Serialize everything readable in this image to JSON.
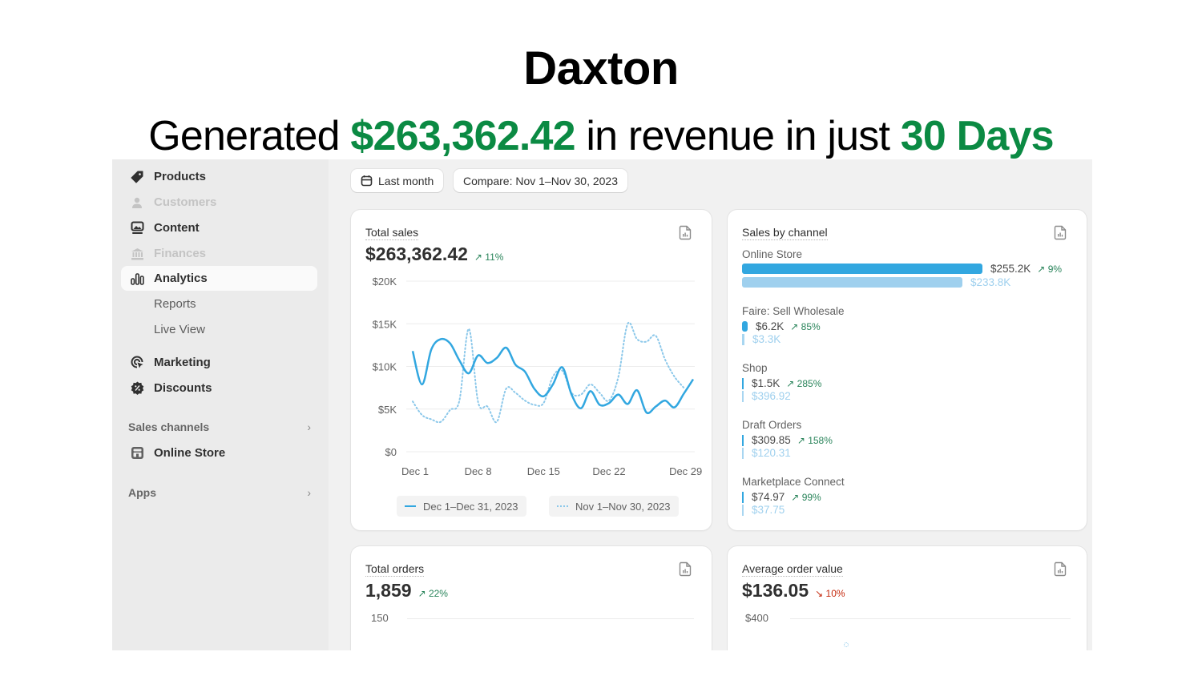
{
  "headline": {
    "brand": "Daxton",
    "prefix": "Generated ",
    "amount": "$263,362.42",
    "middle": " in revenue in just ",
    "period": "30 Days"
  },
  "sidebar": {
    "items": [
      {
        "label": "Products",
        "icon": "tag-icon",
        "state": "normal"
      },
      {
        "label": "Customers",
        "icon": "person-icon",
        "state": "disabled"
      },
      {
        "label": "Content",
        "icon": "image-monitor-icon",
        "state": "normal"
      },
      {
        "label": "Finances",
        "icon": "bank-icon",
        "state": "disabled"
      },
      {
        "label": "Analytics",
        "icon": "bar-chart-icon",
        "state": "active"
      },
      {
        "label": "Reports",
        "state": "sub"
      },
      {
        "label": "Live View",
        "state": "sub"
      },
      {
        "label": "Marketing",
        "icon": "target-icon",
        "state": "normal"
      },
      {
        "label": "Discounts",
        "icon": "discount-badge-icon",
        "state": "normal"
      }
    ],
    "sales_channels_label": "Sales channels",
    "online_store_label": "Online Store",
    "apps_label": "Apps"
  },
  "toolbar": {
    "date_button": "Last month",
    "compare_button": "Compare: Nov 1–Nov 30, 2023"
  },
  "total_sales": {
    "title": "Total sales",
    "value": "$263,362.42",
    "delta": "11%",
    "legend_current": "Dec 1–Dec 31, 2023",
    "legend_previous": "Nov 1–Nov 30, 2023"
  },
  "sales_by_channel": {
    "title": "Sales by channel",
    "channels": [
      {
        "name": "Online Store",
        "current": "$255.2K",
        "delta": "9%",
        "previous": "$233.8K",
        "current_value": 255200,
        "previous_value": 233800
      },
      {
        "name": "Faire: Sell Wholesale",
        "current": "$6.2K",
        "delta": "85%",
        "previous": "$3.3K",
        "current_value": 6200,
        "previous_value": 3300
      },
      {
        "name": "Shop",
        "current": "$1.5K",
        "delta": "285%",
        "previous": "$396.92",
        "current_value": 1500,
        "previous_value": 396.92
      },
      {
        "name": "Draft Orders",
        "current": "$309.85",
        "delta": "158%",
        "previous": "$120.31",
        "current_value": 309.85,
        "previous_value": 120.31
      },
      {
        "name": "Marketplace Connect",
        "current": "$74.97",
        "delta": "99%",
        "previous": "$37.75",
        "current_value": 74.97,
        "previous_value": 37.75
      }
    ]
  },
  "total_orders": {
    "title": "Total orders",
    "value": "1,859",
    "delta": "22%",
    "axis_top": "150"
  },
  "avg_order_value": {
    "title": "Average order value",
    "value": "$136.05",
    "delta": "10%",
    "axis_top": "$400"
  },
  "colors": {
    "accent_green": "#0b8a43",
    "series_current": "#32a7e0",
    "series_previous": "#8cc8ea",
    "delta_up": "#29845a",
    "delta_down": "#c5280c"
  },
  "chart_data": {
    "type": "line",
    "title": "Total sales",
    "xlabel": "",
    "ylabel": "",
    "ylim": [
      0,
      20000
    ],
    "y_ticks": [
      "$0",
      "$5K",
      "$10K",
      "$15K",
      "$20K"
    ],
    "y_tick_values": [
      0,
      5000,
      10000,
      15000,
      20000
    ],
    "x_ticks": [
      "Dec 1",
      "Dec 8",
      "Dec 15",
      "Dec 22",
      "Dec 29"
    ],
    "x_tick_days": [
      1,
      8,
      15,
      22,
      29
    ],
    "grid": true,
    "legend": "bottom",
    "series": [
      {
        "name": "Dec 1–Dec 31, 2023",
        "style": "solid",
        "x": [
          1,
          2,
          3,
          4,
          5,
          6,
          7,
          8,
          9,
          10,
          11,
          12,
          13,
          14,
          15,
          16,
          17,
          18,
          19,
          20,
          21,
          22,
          23,
          24,
          25,
          26,
          27,
          28,
          29,
          30,
          31
        ],
        "values": [
          11800,
          7900,
          12000,
          13200,
          12700,
          10700,
          9200,
          11300,
          10400,
          11000,
          12200,
          10200,
          9400,
          7400,
          6500,
          7900,
          9900,
          6700,
          5100,
          7100,
          5500,
          5700,
          6700,
          5600,
          7200,
          4600,
          5300,
          6000,
          5200,
          6800,
          8500
        ]
      },
      {
        "name": "Nov 1–Nov 30, 2023",
        "style": "dotted",
        "x": [
          1,
          2,
          3,
          4,
          5,
          6,
          7,
          8,
          9,
          10,
          11,
          12,
          13,
          14,
          15,
          16,
          17,
          18,
          19,
          20,
          21,
          22,
          23,
          24,
          25,
          26,
          27,
          28,
          29,
          30
        ],
        "values": [
          5900,
          4300,
          3800,
          3500,
          4900,
          6000,
          14400,
          5800,
          5300,
          3500,
          7400,
          6900,
          6000,
          5500,
          5700,
          8800,
          9500,
          6900,
          6700,
          7900,
          6900,
          6000,
          8800,
          15000,
          13200,
          12900,
          13600,
          10800,
          8800,
          7500
        ]
      }
    ]
  }
}
